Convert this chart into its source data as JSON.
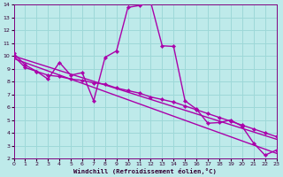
{
  "xlabel": "Windchill (Refroidissement éolien,°C)",
  "xlim": [
    0,
    23
  ],
  "ylim": [
    2,
    14
  ],
  "xticks": [
    0,
    1,
    2,
    3,
    4,
    5,
    6,
    7,
    8,
    9,
    10,
    11,
    12,
    13,
    14,
    15,
    16,
    17,
    18,
    19,
    20,
    21,
    22,
    23
  ],
  "yticks": [
    2,
    3,
    4,
    5,
    6,
    7,
    8,
    9,
    10,
    11,
    12,
    13,
    14
  ],
  "bg_color": "#beeaea",
  "grid_color": "#9dd8d8",
  "line_color": "#aa00aa",
  "line_width": 1.0,
  "marker": "D",
  "marker_size": 2.2,
  "lines": [
    {
      "x": [
        0,
        1,
        2,
        3,
        4,
        5,
        6,
        7,
        8,
        9,
        10,
        11,
        12,
        13,
        14,
        15,
        16,
        17,
        18,
        19,
        20,
        21,
        22,
        23
      ],
      "y": [
        10.2,
        9.3,
        8.8,
        8.2,
        9.5,
        8.5,
        8.7,
        6.5,
        9.9,
        10.4,
        13.8,
        13.95,
        14.2,
        10.8,
        10.75,
        6.5,
        5.85,
        4.75,
        4.8,
        5.0,
        4.5,
        3.2,
        2.25,
        2.65
      ]
    },
    {
      "x": [
        0,
        1,
        2,
        3,
        4,
        5,
        6,
        7,
        8,
        9,
        10,
        11,
        12,
        13,
        14,
        15,
        16,
        17,
        18,
        19,
        20,
        21,
        22,
        23
      ],
      "y": [
        10.0,
        9.1,
        8.8,
        8.5,
        8.4,
        8.2,
        8.1,
        7.9,
        7.8,
        7.5,
        7.3,
        7.1,
        6.8,
        6.6,
        6.4,
        6.1,
        5.8,
        5.5,
        5.2,
        4.9,
        4.6,
        4.3,
        4.0,
        3.7
      ]
    },
    {
      "x": [
        0,
        23
      ],
      "y": [
        10.0,
        3.5
      ]
    },
    {
      "x": [
        0,
        23
      ],
      "y": [
        9.8,
        2.4
      ]
    }
  ]
}
